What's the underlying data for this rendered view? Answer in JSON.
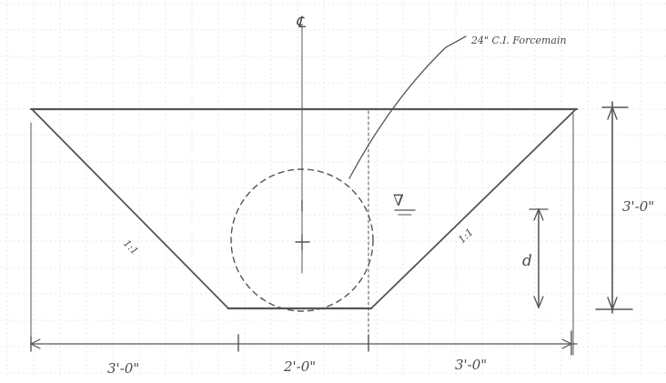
{
  "centerline_symbol": "℄",
  "pipe_label": "24\" C.I. Forcemain",
  "water_surface_symbol": "∇",
  "slope_left": "1:1",
  "slope_right": "1:1",
  "depth_total": "3'-0\"",
  "depth_water": "d",
  "dims_bottom": [
    "3'-0\"",
    "2'-0\"",
    "3'-0\""
  ]
}
